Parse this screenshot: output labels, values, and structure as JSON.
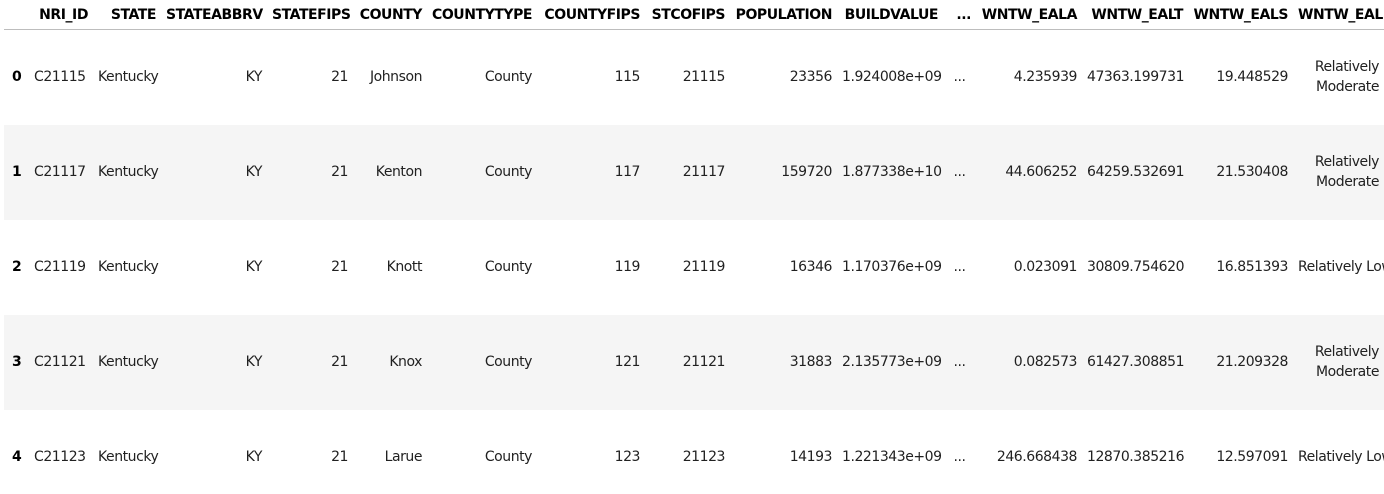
{
  "table": {
    "index_header": "",
    "columns": [
      "NRI_ID",
      "STATE",
      "STATEABBRV",
      "STATEFIPS",
      "COUNTY",
      "COUNTYTYPE",
      "COUNTYFIPS",
      "STCOFIPS",
      "POPULATION",
      "BUILDVALUE",
      "...",
      "WNTW_EALA",
      "WNTW_EALT",
      "WNTW_EALS",
      "WNTW_EALR"
    ],
    "rows": [
      {
        "index": "0",
        "cells": [
          "C21115",
          "Kentucky",
          "KY",
          "21",
          "Johnson",
          "County",
          "115",
          "21115",
          "23356",
          "1.924008e+09",
          "...",
          "4.235939",
          "47363.199731",
          "19.448529",
          "Relatively Moderate"
        ]
      },
      {
        "index": "1",
        "cells": [
          "C21117",
          "Kentucky",
          "KY",
          "21",
          "Kenton",
          "County",
          "117",
          "21117",
          "159720",
          "1.877338e+10",
          "...",
          "44.606252",
          "64259.532691",
          "21.530408",
          "Relatively Moderate"
        ]
      },
      {
        "index": "2",
        "cells": [
          "C21119",
          "Kentucky",
          "KY",
          "21",
          "Knott",
          "County",
          "119",
          "21119",
          "16346",
          "1.170376e+09",
          "...",
          "0.023091",
          "30809.754620",
          "16.851393",
          "Relatively Low"
        ]
      },
      {
        "index": "3",
        "cells": [
          "C21121",
          "Kentucky",
          "KY",
          "21",
          "Knox",
          "County",
          "121",
          "21121",
          "31883",
          "2.135773e+09",
          "...",
          "0.082573",
          "61427.308851",
          "21.209328",
          "Relatively Moderate"
        ]
      },
      {
        "index": "4",
        "cells": [
          "C21123",
          "Kentucky",
          "KY",
          "21",
          "Larue",
          "County",
          "123",
          "21123",
          "14193",
          "1.221343e+09",
          "...",
          "246.668438",
          "12870.385216",
          "12.597091",
          "Relatively Low"
        ]
      }
    ]
  }
}
